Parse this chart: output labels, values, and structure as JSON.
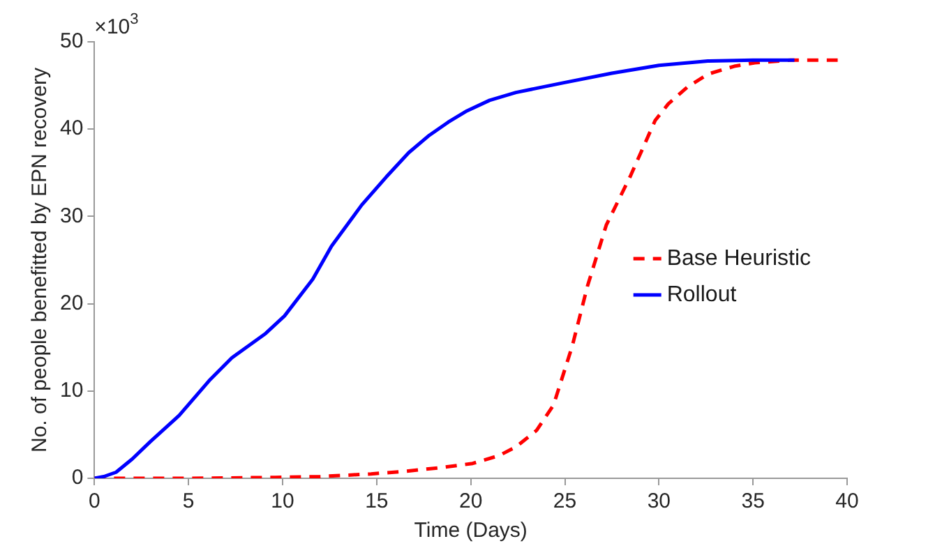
{
  "chart_data": {
    "type": "line",
    "xlabel": "Time (Days)",
    "ylabel": "No. of people benefitted by EPN recovery",
    "annotations": [
      "×10$^{3}$"
    ],
    "xlim": [
      0,
      40
    ],
    "xticks": [
      0,
      5,
      10,
      15,
      20,
      25,
      30,
      35,
      40
    ],
    "ylim": [
      0,
      50
    ],
    "yticks": [
      0,
      10,
      20,
      30,
      40,
      50
    ],
    "grid": false,
    "legend": "right",
    "marker": "none",
    "series": [
      {
        "name": "Base Heuristic",
        "color": "#ff0000",
        "line_style": "dashed",
        "x": [
          0,
          1.2,
          5,
          9.6,
          12,
          14.7,
          16.5,
          18.3,
          20.1,
          21.5,
          22.4,
          23.5,
          24.4,
          25.4,
          26.2,
          27.2,
          28.5,
          29.8,
          30.5,
          31.5,
          32.6,
          34,
          35.1,
          37,
          39.5
        ],
        "values": [
          0,
          0,
          0,
          0.1,
          0.2,
          0.5,
          0.8,
          1.2,
          1.7,
          2.6,
          3.6,
          5.5,
          8.4,
          15.2,
          22,
          29,
          34.7,
          41,
          42.9,
          44.8,
          46.3,
          47.2,
          47.6,
          47.9,
          47.9
        ]
      },
      {
        "name": "Rollout",
        "color": "#0000ff",
        "line_style": "solid",
        "x": [
          0,
          0.5,
          1.15,
          2,
          2.97,
          4.5,
          6.1,
          7.3,
          8.2,
          9.1,
          10.1,
          11.6,
          12.6,
          14.2,
          15.5,
          16.7,
          17.8,
          18.8,
          19.8,
          21,
          22.4,
          24.9,
          27.5,
          30,
          32.6,
          35,
          37.2
        ],
        "values": [
          0,
          0.2,
          0.7,
          2.2,
          4.2,
          7.2,
          11.2,
          13.8,
          15.2,
          16.6,
          18.6,
          22.8,
          26.6,
          31.3,
          34.5,
          37.3,
          39.3,
          40.8,
          42.1,
          43.3,
          44.2,
          45.3,
          46.4,
          47.3,
          47.8,
          47.9,
          47.9
        ]
      }
    ]
  }
}
